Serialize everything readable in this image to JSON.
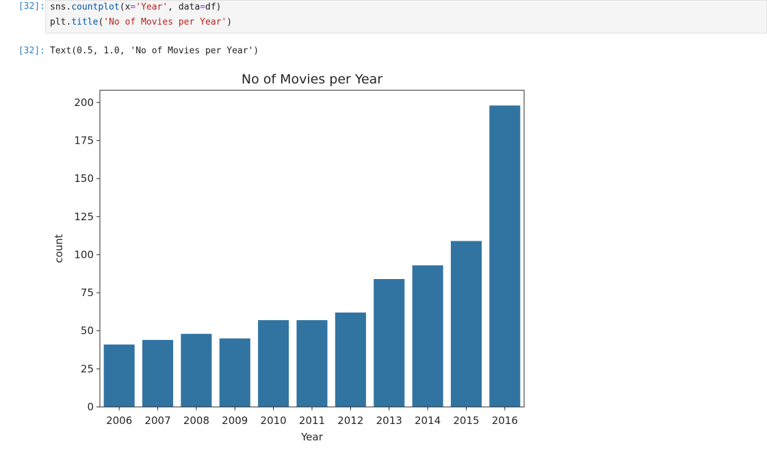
{
  "notebook": {
    "input_prompt": "[32]:",
    "output_prompt": "[32]:",
    "code": {
      "line1": {
        "obj": "sns.",
        "fn": "countplot",
        "open": "(x",
        "op1": "=",
        "str1": "'Year'",
        "mid": ", data",
        "op2": "=",
        "close": "df)"
      },
      "line2": {
        "obj": "plt.",
        "fn": "title",
        "open": "(",
        "str1": "'No of Movies per Year'",
        "close": ")"
      }
    },
    "output_text": "Text(0.5, 1.0, 'No of Movies per Year')"
  },
  "chart_data": {
    "type": "bar",
    "title": "No of Movies per Year",
    "xlabel": "Year",
    "ylabel": "count",
    "categories": [
      "2006",
      "2007",
      "2008",
      "2009",
      "2010",
      "2011",
      "2012",
      "2013",
      "2014",
      "2015",
      "2016"
    ],
    "values": [
      41,
      44,
      48,
      45,
      57,
      57,
      62,
      84,
      93,
      109,
      198
    ],
    "ylim": [
      0,
      208
    ],
    "yticks": [
      0,
      25,
      50,
      75,
      100,
      125,
      150,
      175,
      200
    ],
    "bar_color": "#3274a1",
    "grid": false
  }
}
